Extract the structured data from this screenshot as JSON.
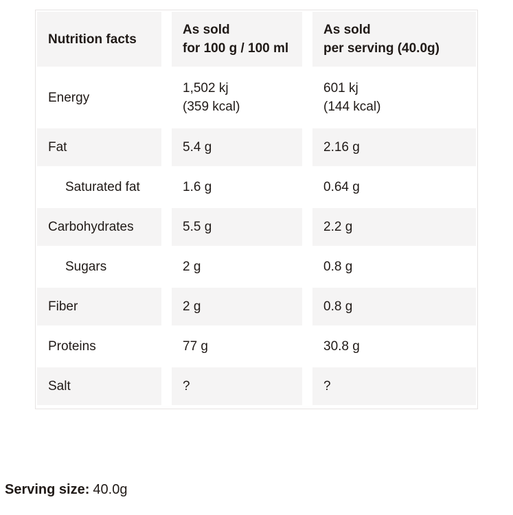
{
  "colors": {
    "row_shade": "#f5f4f4",
    "table_border": "#e6e3e2",
    "text": "#201a17",
    "background": "#ffffff"
  },
  "table": {
    "header": {
      "nutrition_facts": "Nutrition facts",
      "as_sold_100g": "As sold\nfor 100 g / 100 ml",
      "as_sold_serving": "As sold\nper serving (40.0g)"
    },
    "rows": [
      {
        "label": "Energy",
        "indent": false,
        "shaded": false,
        "per_100g": "1,502 kj\n(359 kcal)",
        "per_serving": "601 kj\n(144 kcal)"
      },
      {
        "label": "Fat",
        "indent": false,
        "shaded": true,
        "per_100g": "5.4 g",
        "per_serving": "2.16 g"
      },
      {
        "label": "Saturated fat",
        "indent": true,
        "shaded": false,
        "per_100g": "1.6 g",
        "per_serving": "0.64 g"
      },
      {
        "label": "Carbohydrates",
        "indent": false,
        "shaded": true,
        "per_100g": "5.5 g",
        "per_serving": "2.2 g"
      },
      {
        "label": "Sugars",
        "indent": true,
        "shaded": false,
        "per_100g": "2 g",
        "per_serving": "0.8 g"
      },
      {
        "label": "Fiber",
        "indent": false,
        "shaded": true,
        "per_100g": "2 g",
        "per_serving": "0.8 g"
      },
      {
        "label": "Proteins",
        "indent": false,
        "shaded": false,
        "per_100g": "77 g",
        "per_serving": "30.8 g"
      },
      {
        "label": "Salt",
        "indent": false,
        "shaded": true,
        "per_100g": "?",
        "per_serving": "?"
      }
    ]
  },
  "footer": {
    "serving_size_label": "Serving size:",
    "serving_size_value": "40.0g"
  }
}
